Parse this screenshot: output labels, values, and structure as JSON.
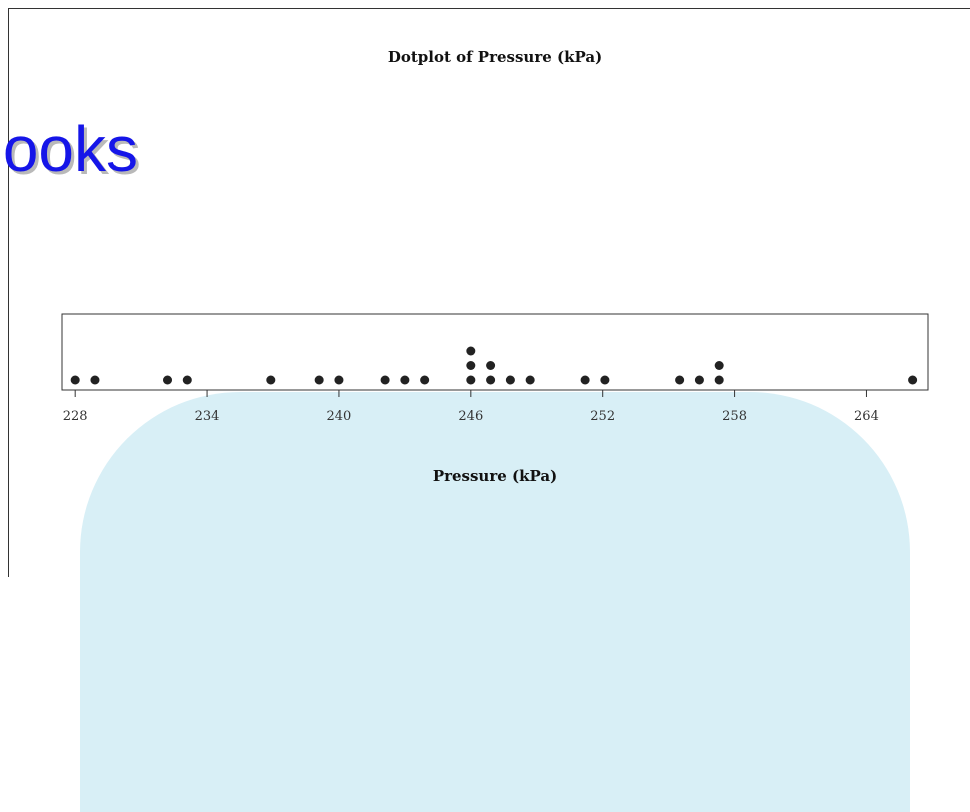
{
  "watermark": {
    "text": "ooks",
    "color": "#1515e8"
  },
  "chart_data": {
    "type": "scatter",
    "subtype": "dotplot",
    "title": "Dotplot of Pressure (kPa)",
    "xlabel": "Pressure (kPa)",
    "ylabel": "",
    "xlim": [
      227.4,
      266.8
    ],
    "xticks": [
      228,
      234,
      240,
      246,
      252,
      258,
      264
    ],
    "grid": false,
    "dot_color": "#222222",
    "values": [
      228,
      228.9,
      232.2,
      233.1,
      236.9,
      239.1,
      240,
      242.1,
      243,
      243.9,
      246,
      246,
      246,
      246.9,
      246.9,
      247.8,
      248.7,
      251.2,
      252.1,
      255.5,
      256.4,
      257.3,
      257.3,
      266.1
    ]
  }
}
